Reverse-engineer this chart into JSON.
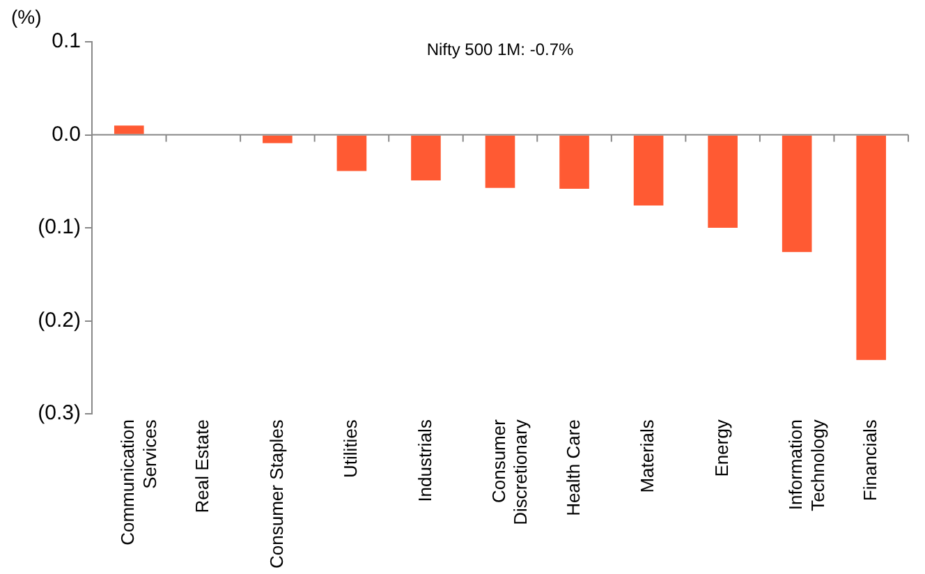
{
  "chart_data": {
    "type": "bar",
    "ylabel": "(%)",
    "annotations": [
      "Nifty 500 1M: -0.7%"
    ],
    "categories": [
      "Communication\nServices",
      "Real Estate",
      "Consumer Staples",
      "Utilities",
      "Industrials",
      "Consumer\nDiscretionary",
      "Health Care",
      "Materials",
      "Energy",
      "Information\nTechnology",
      "Financials"
    ],
    "values": [
      0.01,
      0.0,
      -0.009,
      -0.039,
      -0.049,
      -0.057,
      -0.058,
      -0.076,
      -0.1,
      -0.126,
      -0.242
    ],
    "color": "#ff5a33",
    "ylim": [
      -0.3,
      0.1
    ],
    "yticks": [
      {
        "value": -0.3,
        "label": "(0.3)"
      },
      {
        "value": -0.2,
        "label": "(0.2)"
      },
      {
        "value": -0.1,
        "label": "(0.1)"
      },
      {
        "value": 0,
        "label": "0.0"
      },
      {
        "value": 0.1,
        "label": "0.1"
      }
    ],
    "ref_lines": [
      {
        "axis": "y",
        "value": 0,
        "color": "#888888"
      }
    ],
    "grid": false,
    "legend": false
  }
}
